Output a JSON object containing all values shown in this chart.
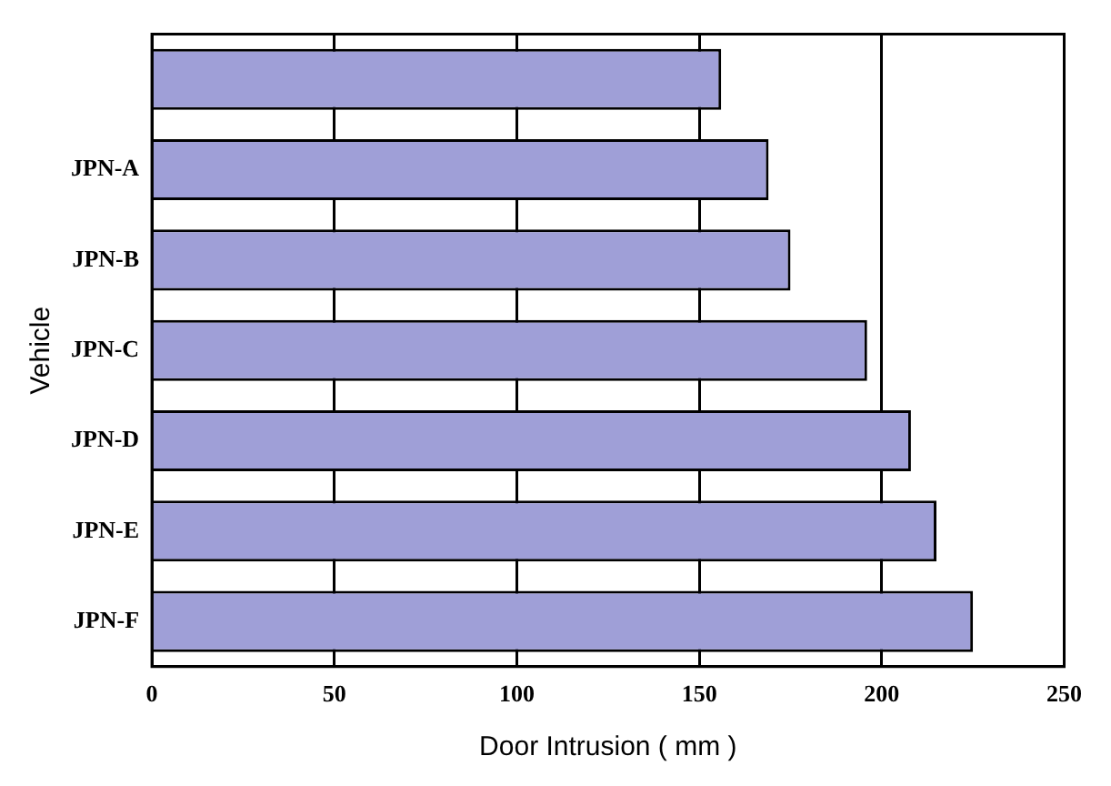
{
  "chart_data": {
    "type": "bar",
    "orientation": "horizontal",
    "xlabel": "Door Intrusion ( mm )",
    "ylabel": "Vehicle",
    "categories": [
      null,
      "JPN-A",
      "JPN-B",
      "JPN-C",
      "JPN-D",
      "JPN-E",
      "JPN-F"
    ],
    "values": [
      156,
      169,
      175,
      196,
      208,
      215,
      225
    ],
    "color": "#9f9fd7",
    "xlim": [
      0,
      250
    ],
    "xticks": [
      0,
      50,
      100,
      150,
      200,
      250
    ],
    "grid": "x",
    "legend": false
  }
}
